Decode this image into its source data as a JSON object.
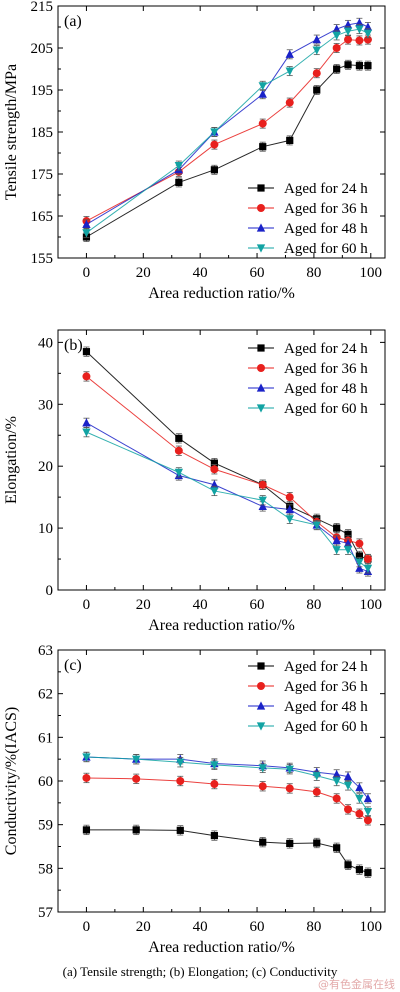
{
  "caption": "(a) Tensile strength; (b) Elongation; (c) Conductivity",
  "watermark": "@有色金属在线",
  "chart_data": [
    {
      "type": "line",
      "panel_label": "(a)",
      "xlabel": "Area reduction ratio/%",
      "ylabel": "Tensile strength/MPa",
      "xlim": [
        -10,
        105
      ],
      "ylim": [
        155,
        215
      ],
      "xticks": [
        0,
        20,
        40,
        60,
        80,
        100
      ],
      "yticks": [
        155,
        165,
        175,
        185,
        195,
        205,
        215
      ],
      "legend_position": "lower-right",
      "x": [
        0,
        32.5,
        45,
        62,
        71.5,
        81,
        88,
        92,
        96,
        99
      ],
      "series": [
        {
          "name": "Aged for 24 h",
          "marker": "square",
          "color": "#000000",
          "values": [
            160,
            173,
            176,
            181.5,
            183,
            195,
            200,
            201,
            200.8,
            200.8
          ]
        },
        {
          "name": "Aged for 36 h",
          "marker": "circle",
          "color": "#e8201d",
          "values": [
            163.8,
            175.5,
            182,
            187,
            192,
            199,
            205,
            207,
            206.8,
            207
          ]
        },
        {
          "name": "Aged for 48 h",
          "marker": "triangle-up",
          "color": "#1a22c8",
          "values": [
            163,
            176,
            185,
            194,
            203.5,
            207,
            209.5,
            210.5,
            211,
            210
          ]
        },
        {
          "name": "Aged for 60 h",
          "marker": "triangle-down",
          "color": "#12a3a3",
          "values": [
            161,
            177,
            185,
            196,
            199.5,
            204.5,
            208,
            209,
            209.5,
            208.5
          ]
        }
      ]
    },
    {
      "type": "line",
      "panel_label": "(b)",
      "xlabel": "Area reduction ratio/%",
      "ylabel": "Elongation/%",
      "xlim": [
        -10,
        105
      ],
      "ylim": [
        0,
        42
      ],
      "xticks": [
        0,
        20,
        40,
        60,
        80,
        100
      ],
      "yticks": [
        0,
        10,
        20,
        30,
        40
      ],
      "legend_position": "top-right",
      "x": [
        0,
        32.5,
        45,
        62,
        71.5,
        81,
        88,
        92,
        96,
        99
      ],
      "series": [
        {
          "name": "Aged for 24 h",
          "marker": "square",
          "color": "#000000",
          "values": [
            38.5,
            24.5,
            20.5,
            17,
            13.5,
            11.5,
            10,
            9,
            5.5,
            5
          ]
        },
        {
          "name": "Aged for 36 h",
          "marker": "circle",
          "color": "#e8201d",
          "values": [
            34.5,
            22.5,
            19.5,
            17,
            15,
            11,
            8.5,
            8,
            7.5,
            5
          ]
        },
        {
          "name": "Aged for 48 h",
          "marker": "triangle-up",
          "color": "#1a22c8",
          "values": [
            27,
            18.5,
            17,
            13.5,
            13,
            10.5,
            8,
            7.5,
            3.5,
            3
          ]
        },
        {
          "name": "Aged for 60 h",
          "marker": "triangle-down",
          "color": "#12a3a3",
          "values": [
            25.5,
            19,
            16,
            14.5,
            11.5,
            10.5,
            6.5,
            6.5,
            4.5,
            3.5
          ]
        }
      ]
    },
    {
      "type": "line",
      "panel_label": "(c)",
      "xlabel": "Area reduction ratio/%",
      "ylabel": "Conductivity/%(IACS)",
      "xlim": [
        -10,
        105
      ],
      "ylim": [
        57,
        63
      ],
      "xticks": [
        0,
        20,
        40,
        60,
        80,
        100
      ],
      "yticks": [
        57,
        58,
        59,
        60,
        61,
        62,
        63
      ],
      "legend_position": "top-right",
      "x": [
        0,
        17.5,
        33,
        45,
        62,
        71.5,
        81,
        88,
        92,
        96,
        99
      ],
      "series": [
        {
          "name": "Aged for 24 h",
          "marker": "square",
          "color": "#000000",
          "values": [
            58.88,
            58.88,
            58.87,
            58.75,
            58.6,
            58.57,
            58.58,
            58.47,
            58.08,
            57.97,
            57.9
          ]
        },
        {
          "name": "Aged for 36 h",
          "marker": "circle",
          "color": "#e8201d",
          "values": [
            60.07,
            60.05,
            60.0,
            59.93,
            59.88,
            59.83,
            59.75,
            59.6,
            59.35,
            59.25,
            59.1
          ]
        },
        {
          "name": "Aged for 48 h",
          "marker": "triangle-up",
          "color": "#1a22c8",
          "values": [
            60.55,
            60.5,
            60.5,
            60.4,
            60.35,
            60.3,
            60.2,
            60.15,
            60.1,
            59.85,
            59.6
          ]
        },
        {
          "name": "Aged for 60 h",
          "marker": "triangle-down",
          "color": "#12a3a3",
          "values": [
            60.55,
            60.5,
            60.43,
            60.37,
            60.3,
            60.27,
            60.12,
            60.0,
            59.9,
            59.6,
            59.3
          ]
        }
      ]
    }
  ]
}
